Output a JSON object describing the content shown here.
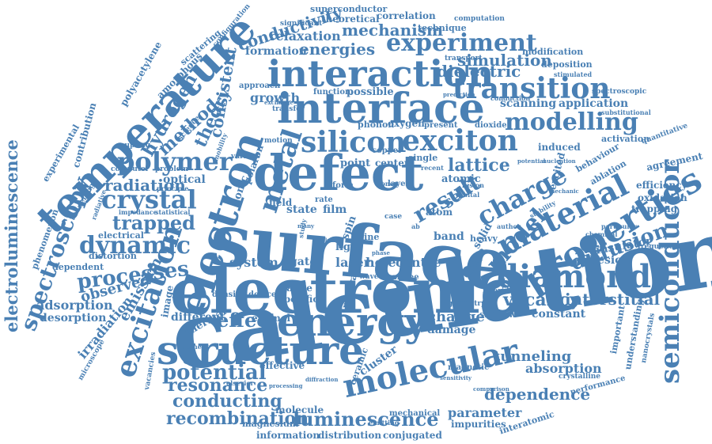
{
  "cloud": {
    "color": "#4a80b4",
    "words": [
      "calculation",
      "surface",
      "electronic",
      "defect",
      "interface",
      "interaction",
      "structure",
      "electron",
      "energy",
      "temperature",
      "semiconductor",
      "diamond",
      "properties",
      "material",
      "silicon",
      "exciton",
      "molecular",
      "transition",
      "modelling",
      "polymer",
      "crystal",
      "dynamic",
      "excitation",
      "charge",
      "model",
      "metal",
      "spectroscopy",
      "potential",
      "luminescence",
      "electroluminescence",
      "processes",
      "diffusion",
      "experiment",
      "result",
      "trapped",
      "recombination",
      "conducting",
      "resonance",
      "effect",
      "radiation",
      "hydrogen",
      "method",
      "theory",
      "conductivity",
      "mechanism",
      "energies",
      "relaxation",
      "simulation",
      "dielectric",
      "lattice",
      "vacancy",
      "interstitial",
      "dependence",
      "tunneling",
      "absorption",
      "parameter",
      "emission",
      "irradiation",
      "adsorption",
      "desorption",
      "observed",
      "change",
      "damage",
      "constant",
      "insulator",
      "adhesion",
      "state",
      "film",
      "system",
      "laser",
      "hole",
      "centre",
      "band",
      "gate",
      "self",
      "consistent",
      "growth",
      "formation",
      "scanning",
      "application",
      "efficiency",
      "oxidation",
      "trapping",
      "agreement",
      "optical",
      "amorphous",
      "polyacetylene",
      "scattering",
      "superconductor",
      "theoretical",
      "correlation",
      "computation",
      "technique",
      "modification",
      "deposition",
      "transport",
      "experimental",
      "contribution",
      "phenomenon",
      "dependent",
      "distortion",
      "electrical",
      "possible",
      "oxygen",
      "phonon",
      "dioxide",
      "present",
      "copper",
      "point",
      "center",
      "single",
      "atomic",
      "induced",
      "excited",
      "behaviour",
      "ablation",
      "quantitative",
      "activation",
      "spectroscopic",
      "substitutional",
      "conduction",
      "stimulated",
      "field",
      "ionic",
      "polaron",
      "light",
      "spin",
      "line",
      "atom",
      "solid",
      "heavy",
      "shape",
      "chemical",
      "particular",
      "frequency",
      "different",
      "thermal",
      "image",
      "enamel",
      "density",
      "device",
      "range",
      "specific",
      "neutral",
      "cluster",
      "ceramic",
      "effective",
      "element",
      "molecule",
      "magnesium",
      "information",
      "distribution",
      "conjugated",
      "impurities",
      "interatomic",
      "mechanical",
      "magnetic",
      "shallow",
      "fluoride",
      "crystalline",
      "nanocrystals",
      "understanding",
      "important",
      "performance",
      "vacancies",
      "microscope",
      "elsevier",
      "processing",
      "tunnelling",
      "radiative",
      "coupling",
      "computer",
      "problem",
      "principle",
      "impedance",
      "statistical",
      "various",
      "motion",
      "science",
      "mobility",
      "function",
      "approach",
      "transfer",
      "exchange",
      "layer",
      "form",
      "donor",
      "rate",
      "volume",
      "many",
      "case",
      "nucleation",
      "mechanic",
      "hartree",
      "diffraction",
      "emitting",
      "comparison",
      "geometry",
      "orbital",
      "fusion",
      "recent",
      "sensitivity",
      "prediction",
      "significant",
      "configuration",
      "ab",
      "potential",
      "phase",
      "wave",
      "study",
      "author",
      "stability"
    ]
  }
}
